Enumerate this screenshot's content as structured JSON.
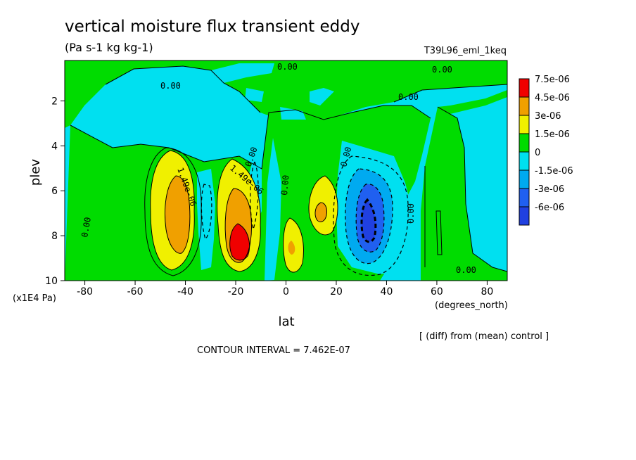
{
  "chart_data": {
    "type": "contour",
    "title": "vertical moisture flux transient eddy",
    "units": "(Pa s-1 kg kg-1)",
    "run_label": "T39L96_eml_1keq",
    "xlabel": "lat",
    "x_units": "(degrees_north)",
    "ylabel": "plev",
    "y_units": "(x1E4 Pa)",
    "x_ticks": [
      "-80",
      "-60",
      "-40",
      "-20",
      "0",
      "20",
      "40",
      "60",
      "80"
    ],
    "y_ticks": [
      "2",
      "4",
      "6",
      "8",
      "10"
    ],
    "xlim": [
      -88,
      88
    ],
    "ylim": [
      10,
      0.2
    ],
    "note": "[ (diff) from (mean) control ]",
    "contour_interval": "CONTOUR INTERVAL = 7.462E-07",
    "contour_labels": [
      "0.00",
      "0.00",
      "0.00",
      "0.00",
      "0.00",
      "0.00",
      "0.00",
      "0.00",
      "0.00",
      "0.00",
      "1.49e-06",
      "1.49e-06"
    ],
    "legend": [
      {
        "label": "7.5e-06",
        "color": "#f00000"
      },
      {
        "label": "4.5e-06",
        "color": "#f0a000"
      },
      {
        "label": "3e-06",
        "color": "#f0f000"
      },
      {
        "label": "1.5e-06",
        "color": "#00dc00"
      },
      {
        "label": "0",
        "color": "#00e0f0"
      },
      {
        "label": "-1.5e-06",
        "color": "#00aaf0"
      },
      {
        "label": "-3e-06",
        "color": "#2060f0"
      },
      {
        "label": "-6e-06",
        "color": "#2040e0"
      }
    ],
    "features": [
      {
        "sign": "positive",
        "lat": -42,
        "plev": 7.0,
        "peak": 4.5e-06
      },
      {
        "sign": "positive",
        "lat": -20,
        "plev": 8.4,
        "peak": 7.5e-06
      },
      {
        "sign": "positive",
        "lat": 13,
        "plev": 6.9,
        "peak": 4.5e-06
      },
      {
        "sign": "positive",
        "lat": 4,
        "plev": 8.5,
        "peak": 3e-06
      },
      {
        "sign": "negative",
        "lat": 32,
        "plev": 7.2,
        "peak": -6e-06
      },
      {
        "sign": "negative",
        "lat": -30,
        "plev": 7.5,
        "peak": -1.5e-06
      }
    ]
  }
}
